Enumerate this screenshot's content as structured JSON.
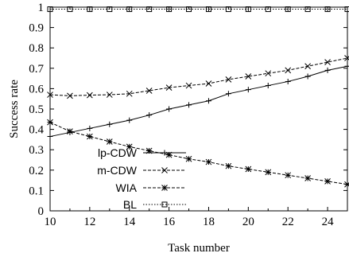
{
  "chart_data": {
    "type": "line",
    "xlabel": "Task number",
    "ylabel": "Success rate",
    "xlim": [
      10,
      25
    ],
    "ylim": [
      0,
      1
    ],
    "x_ticks": [
      10,
      12,
      14,
      16,
      18,
      20,
      22,
      24
    ],
    "y_ticks": [
      0,
      0.1,
      0.2,
      0.3,
      0.4,
      0.5,
      0.6,
      0.7,
      0.8,
      0.9,
      1
    ],
    "x_tick_labels": [
      "10",
      "12",
      "14",
      "16",
      "18",
      "20",
      "22",
      "24"
    ],
    "y_tick_labels": [
      "0",
      "0.1",
      "0.2",
      "0.3",
      "0.4",
      "0.5",
      "0.6",
      "0.7",
      "0.8",
      "0.9",
      "1"
    ],
    "grid": false,
    "legend_position": "lower-left",
    "x": [
      10,
      11,
      12,
      13,
      14,
      15,
      16,
      17,
      18,
      19,
      20,
      21,
      22,
      23,
      24,
      25
    ],
    "series": [
      {
        "name": "lp-CDW",
        "marker": "plus",
        "dash": "solid",
        "values": [
          0.365,
          0.385,
          0.405,
          0.425,
          0.445,
          0.47,
          0.5,
          0.52,
          0.54,
          0.575,
          0.595,
          0.615,
          0.635,
          0.66,
          0.69,
          0.71
        ]
      },
      {
        "name": "m-CDW",
        "marker": "cross",
        "dash": "dashed",
        "values": [
          0.57,
          0.565,
          0.568,
          0.57,
          0.575,
          0.59,
          0.605,
          0.615,
          0.625,
          0.645,
          0.66,
          0.675,
          0.69,
          0.71,
          0.73,
          0.75
        ]
      },
      {
        "name": "WIA",
        "marker": "star",
        "dash": "dashed",
        "values": [
          0.435,
          0.39,
          0.365,
          0.34,
          0.315,
          0.295,
          0.275,
          0.255,
          0.24,
          0.22,
          0.205,
          0.19,
          0.175,
          0.16,
          0.145,
          0.13
        ]
      },
      {
        "name": "BL",
        "marker": "square",
        "dash": "dotted",
        "values": [
          0.99,
          0.99,
          0.99,
          0.99,
          0.99,
          0.99,
          0.99,
          0.99,
          0.99,
          0.99,
          0.99,
          0.99,
          0.99,
          0.99,
          0.99,
          0.99
        ]
      }
    ]
  }
}
